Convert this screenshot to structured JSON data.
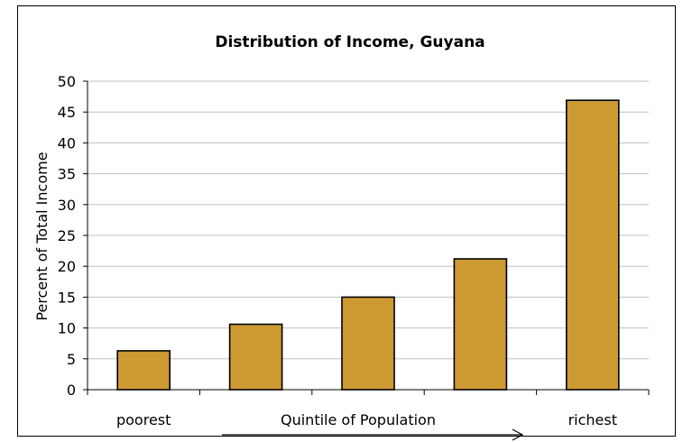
{
  "chart_data": {
    "type": "bar",
    "title": "Distribution of Income, Guyana",
    "ylabel": "Percent of Total Income",
    "xlabel": "Quintile of Population",
    "categories": [
      "poorest",
      "",
      "",
      "",
      "richest"
    ],
    "values": [
      6.3,
      10.6,
      15.0,
      21.2,
      46.9
    ],
    "ylim": [
      0,
      50
    ],
    "yticks": [
      "0",
      "5",
      "10",
      "15",
      "20",
      "25",
      "30",
      "35",
      "40",
      "45",
      "50"
    ],
    "grid": true,
    "legend": "none",
    "colors": {
      "bar": "#CC9933",
      "bar_stroke": "#000000",
      "grid": "#C0C0C0"
    }
  }
}
